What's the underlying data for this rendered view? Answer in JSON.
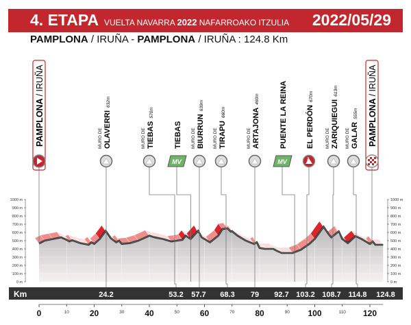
{
  "header": {
    "stage": "4. ETAPA",
    "race_a": "VUELTA NAVARRA",
    "race_year": "2022",
    "race_b": "NAFARROAKO ITZULIA",
    "date": "2022/05/29"
  },
  "route": {
    "start_bold": "PAMPLONA",
    "start_rest": " / IRUÑA - ",
    "finish_bold": "PAMPLONA",
    "finish_rest": " / IRUÑA : 124.8 Km"
  },
  "colors": {
    "accent": "#c1272d",
    "mv": "#6db566",
    "bar": "#333333"
  },
  "waypoints": [
    {
      "type": "start",
      "main": "PAMPLONA",
      "sub": "/ IRUÑA",
      "km": 0,
      "icon": "start-icon"
    },
    {
      "type": "climb",
      "pre": "MURO DE",
      "main": "OLAVERRI",
      "alt": "632m",
      "km": 24.2,
      "icon": "mountain-icon"
    },
    {
      "type": "climb",
      "pre": "MURO DE",
      "main": "TIEBAS",
      "alt": "570m",
      "km": 53.2,
      "icon": "mountain-icon"
    },
    {
      "type": "sprint",
      "main": "TIEBAS",
      "badge": "MV",
      "km": 55,
      "icon": "mv-icon"
    },
    {
      "type": "climb",
      "pre": "MURO DE",
      "main": "BIURRUN",
      "alt": "639m",
      "km": 57.7,
      "icon": "mountain-icon"
    },
    {
      "type": "climb",
      "pre": "MURO DE",
      "main": "TIRAPU",
      "alt": "660m",
      "km": 68.3,
      "icon": "mountain-icon"
    },
    {
      "type": "climb",
      "pre": "MURO DE",
      "main": "ARTAJONA",
      "alt": "460m",
      "km": 79,
      "icon": "mountain-icon"
    },
    {
      "type": "sprint",
      "main": "PUENTE LA REINA",
      "badge": "MV",
      "km": 92.7,
      "icon": "mv-icon"
    },
    {
      "type": "cat2",
      "main": "EL PERDÓN",
      "alt": "670m",
      "km": 103.2,
      "icon": "cat2-mountain-icon",
      "badge": "2"
    },
    {
      "type": "climb",
      "pre": "MURO DE",
      "main": "ZARIQUIEGUI",
      "alt": "613m",
      "km": 108.7,
      "icon": "mountain-icon"
    },
    {
      "type": "climb",
      "pre": "MURO DE",
      "main": "GALAR",
      "alt": "555m",
      "km": 114.8,
      "icon": "mountain-icon"
    },
    {
      "type": "finish",
      "main": "PAMPLONA",
      "sub": "/ IRUÑA",
      "km": 124.8,
      "icon": "finish-flag-icon"
    }
  ],
  "chart_data": {
    "type": "area",
    "title": "4. ETAPA profile",
    "xlabel": "Km",
    "ylabel": "m",
    "xlim": [
      0,
      124.8
    ],
    "ylim": [
      0,
      1000
    ],
    "x_major_ticks": [
      0,
      20,
      40,
      60,
      80,
      100,
      120
    ],
    "x_minor_ticks": [
      10,
      30,
      50,
      70,
      90,
      110
    ],
    "y_ticks": [
      "0 m",
      "100 m",
      "200 m",
      "300 m",
      "400 m",
      "500 m",
      "600 m",
      "700 m",
      "800 m",
      "900 m",
      "1000 m"
    ],
    "km_markers": [
      "24.2",
      "53.2",
      "57.7",
      "68.3",
      "79",
      "92.7",
      "103.2",
      "108.7",
      "114.8",
      "124.8"
    ],
    "km_label": "Km",
    "profile": [
      [
        0,
        465
      ],
      [
        2,
        500
      ],
      [
        5,
        520
      ],
      [
        8,
        540
      ],
      [
        10,
        510
      ],
      [
        11,
        490
      ],
      [
        12,
        505
      ],
      [
        15,
        470
      ],
      [
        18,
        450
      ],
      [
        19,
        480
      ],
      [
        20,
        460
      ],
      [
        22,
        520
      ],
      [
        24.2,
        620
      ],
      [
        26,
        530
      ],
      [
        28,
        480
      ],
      [
        29,
        500
      ],
      [
        30,
        460
      ],
      [
        33,
        470
      ],
      [
        36,
        500
      ],
      [
        40,
        560
      ],
      [
        42,
        540
      ],
      [
        45,
        520
      ],
      [
        48,
        490
      ],
      [
        50,
        500
      ],
      [
        52,
        510
      ],
      [
        53.2,
        560
      ],
      [
        55,
        520
      ],
      [
        57.7,
        620
      ],
      [
        59,
        540
      ],
      [
        62,
        480
      ],
      [
        65,
        560
      ],
      [
        66.5,
        640
      ],
      [
        68.3,
        650
      ],
      [
        69.5,
        610
      ],
      [
        70,
        615
      ],
      [
        72,
        560
      ],
      [
        75,
        500
      ],
      [
        78,
        460
      ],
      [
        79,
        480
      ],
      [
        80,
        410
      ],
      [
        82,
        400
      ],
      [
        85,
        400
      ],
      [
        86,
        380
      ],
      [
        88,
        350
      ],
      [
        92,
        350
      ],
      [
        95,
        390
      ],
      [
        98,
        460
      ],
      [
        100,
        520
      ],
      [
        103.2,
        670
      ],
      [
        105,
        580
      ],
      [
        106,
        540
      ],
      [
        108.7,
        613
      ],
      [
        110,
        520
      ],
      [
        112,
        470
      ],
      [
        114.8,
        555
      ],
      [
        117,
        520
      ],
      [
        120,
        460
      ],
      [
        121,
        490
      ],
      [
        122,
        450
      ],
      [
        124.8,
        450
      ]
    ]
  }
}
